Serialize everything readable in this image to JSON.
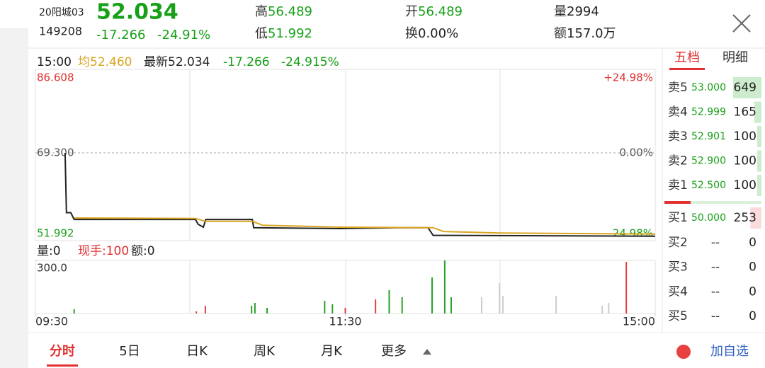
{
  "header": {
    "name": "20阳城03",
    "code": "149208",
    "price": "52.034",
    "change": "-17.266",
    "change_pct": "-24.91%",
    "stats": [
      {
        "label": "高",
        "value": "56.489"
      },
      {
        "label": "低",
        "value": "51.992"
      },
      {
        "label": "开",
        "value": "56.489"
      },
      {
        "label": "换",
        "value": "0.00%"
      },
      {
        "label": "量",
        "value": "2994"
      },
      {
        "label": "额",
        "value": "157.0万"
      }
    ]
  },
  "chart_info": {
    "time": "15:00",
    "avg_label": "均",
    "avg": "52.460",
    "latest_label": "最新",
    "latest": "52.034",
    "change": "-17.266",
    "change_pct": "-24.915%"
  },
  "chart_data": [
    {
      "type": "line",
      "ylim": [
        51.992,
        86.608
      ],
      "yticks": [
        86.608,
        {
          "value": 69.3,
          "label": "69.300"
        },
        51.992
      ],
      "y_pct_labels": [
        "+24.98%",
        "0.00%",
        "-24.98%"
      ],
      "xlim": [
        0,
        240
      ],
      "xticks": [
        {
          "value": 0,
          "label": "09:30"
        },
        {
          "value": 120,
          "label": "11:30"
        },
        {
          "value": 240,
          "label": "15:00"
        }
      ],
      "series": [
        {
          "color": "#222222",
          "x": [
            11.5,
            12,
            13.7,
            15,
            62,
            63,
            65,
            66,
            84,
            84.5,
            118,
            140,
            152,
            154,
            240
          ],
          "values": [
            69.3,
            56.9,
            56.9,
            55.5,
            55.5,
            54.5,
            53.9,
            55.5,
            55.5,
            53.8,
            53.6,
            53.8,
            53.8,
            52.2,
            52.034
          ]
        },
        {
          "color": "#d9a521",
          "x": [
            15,
            62,
            66,
            84,
            88,
            118,
            154,
            158,
            180,
            240
          ],
          "values": [
            55.8,
            55.7,
            55.1,
            55.1,
            54.3,
            53.9,
            53.8,
            53.0,
            52.7,
            52.46
          ]
        }
      ]
    },
    {
      "type": "bar",
      "ylim": [
        0,
        300
      ],
      "yticks": [
        {
          "value": 300,
          "label": "300.0"
        }
      ],
      "xlim": [
        0,
        240
      ],
      "x": [
        15,
        62.3,
        65.8,
        83.7,
        85,
        89.7,
        112,
        115,
        120,
        131.7,
        137,
        142,
        153.6,
        158.5,
        161,
        172.8,
        179.7,
        181,
        201.6,
        219.5,
        222,
        228.8
      ],
      "values": [
        24,
        12,
        44,
        44,
        60,
        32,
        72,
        52,
        32,
        80,
        132,
        92,
        204,
        300,
        92,
        92,
        172,
        100,
        100,
        44,
        60,
        292
      ],
      "colors": [
        "#2aa02a",
        "#e04040",
        "#e04040",
        "#2aa02a",
        "#2aa02a",
        "#2aa02a",
        "#2aa02a",
        "#2aa02a",
        "#e04040",
        "#e04040",
        "#2aa02a",
        "#2aa02a",
        "#2aa02a",
        "#2aa02a",
        "#2aa02a",
        "#cccccc",
        "#cccccc",
        "#cccccc",
        "#cccccc",
        "#cccccc",
        "#cccccc",
        "#e04040"
      ]
    }
  ],
  "volume_info": [
    {
      "label": "量:",
      "value": "0"
    },
    {
      "label": "现手:",
      "value": "100"
    },
    {
      "label": "额:",
      "value": "0"
    }
  ],
  "order_book": {
    "tabs": [
      "五档",
      "明细"
    ],
    "asks": [
      {
        "label": "卖5",
        "price": "53.000",
        "qty": 649
      },
      {
        "label": "卖4",
        "price": "52.999",
        "qty": 165
      },
      {
        "label": "卖3",
        "price": "52.901",
        "qty": 100
      },
      {
        "label": "卖2",
        "price": "52.900",
        "qty": 100
      },
      {
        "label": "卖1",
        "price": "52.500",
        "qty": 100
      }
    ],
    "bids": [
      {
        "label": "买1",
        "price": "50.000",
        "qty": 253
      },
      {
        "label": "买2",
        "price": "--",
        "qty": 0
      },
      {
        "label": "买3",
        "price": "--",
        "qty": 0
      },
      {
        "label": "买4",
        "price": "--",
        "qty": 0
      },
      {
        "label": "买5",
        "price": "--",
        "qty": 0
      }
    ]
  },
  "bottom_tabs": [
    "分时",
    "5日",
    "日K",
    "周K",
    "月K",
    "更多"
  ],
  "watchlist": "加自选"
}
